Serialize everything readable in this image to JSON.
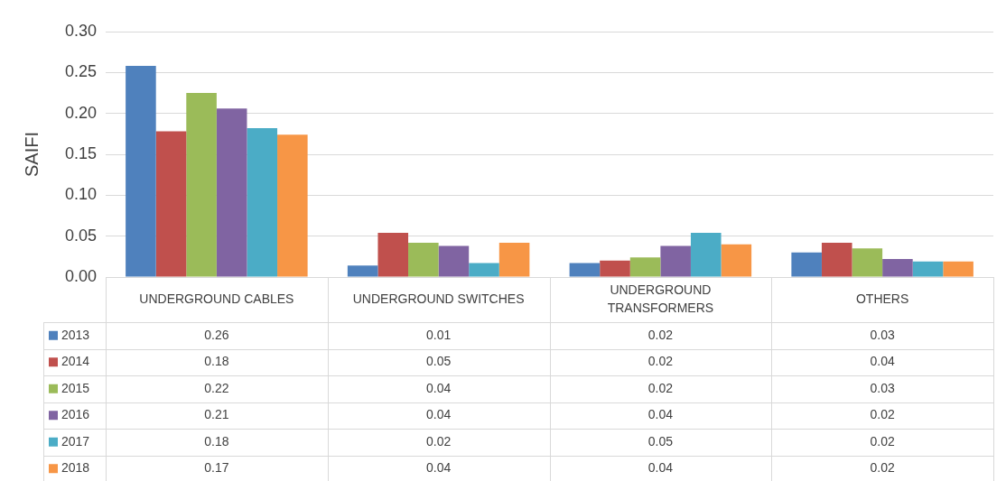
{
  "chart_data": {
    "type": "bar",
    "ylabel": "SAIFI",
    "categories": [
      "UNDERGROUND CABLES",
      "UNDERGROUND SWITCHES",
      "UNDERGROUND TRANSFORMERS",
      "OTHERS"
    ],
    "series": [
      {
        "name": "2013",
        "color": "#4f81bd",
        "values": [
          0.258,
          0.014,
          0.017,
          0.03
        ],
        "value_labels": [
          "0.26",
          "0.01",
          "0.02",
          "0.03"
        ]
      },
      {
        "name": "2014",
        "color": "#c0504d",
        "values": [
          0.178,
          0.054,
          0.02,
          0.042
        ],
        "value_labels": [
          "0.18",
          "0.05",
          "0.02",
          "0.04"
        ]
      },
      {
        "name": "2015",
        "color": "#9bbb59",
        "values": [
          0.225,
          0.042,
          0.024,
          0.035
        ],
        "value_labels": [
          "0.22",
          "0.04",
          "0.02",
          "0.03"
        ]
      },
      {
        "name": "2016",
        "color": "#8064a2",
        "values": [
          0.206,
          0.038,
          0.038,
          0.022
        ],
        "value_labels": [
          "0.21",
          "0.04",
          "0.04",
          "0.02"
        ]
      },
      {
        "name": "2017",
        "color": "#4bacc6",
        "values": [
          0.182,
          0.017,
          0.054,
          0.019
        ],
        "value_labels": [
          "0.18",
          "0.02",
          "0.05",
          "0.02"
        ]
      },
      {
        "name": "2018",
        "color": "#f79646",
        "values": [
          0.174,
          0.042,
          0.04,
          0.019
        ],
        "value_labels": [
          "0.17",
          "0.04",
          "0.04",
          "0.02"
        ]
      }
    ],
    "ylim": [
      0,
      0.3
    ],
    "yticks": [
      {
        "value": 0,
        "label": "0.00"
      },
      {
        "value": 0.05,
        "label": "0.05"
      },
      {
        "value": 0.1,
        "label": "0.10"
      },
      {
        "value": 0.15,
        "label": "0.15"
      },
      {
        "value": 0.2,
        "label": "0.20"
      },
      {
        "value": 0.25,
        "label": "0.25"
      },
      {
        "value": 0.3,
        "label": "0.30"
      }
    ],
    "grid": "y",
    "legend": "bottom"
  }
}
